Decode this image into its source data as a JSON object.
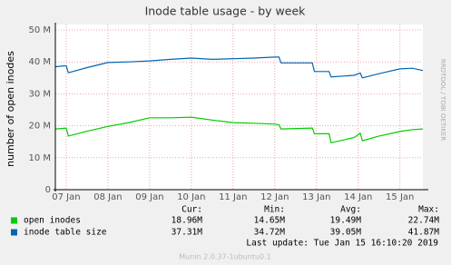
{
  "chart_data": {
    "type": "line",
    "title": "Inode table usage - by week",
    "y_label": "number of open inodes",
    "x": [
      6.75,
      7.0,
      7.05,
      7.5,
      8.0,
      8.5,
      9.0,
      9.5,
      10.0,
      10.5,
      11.0,
      11.5,
      12.0,
      12.1,
      12.15,
      12.9,
      12.95,
      13.3,
      13.35,
      13.9,
      14.05,
      14.1,
      14.5,
      15.0,
      15.3,
      15.55
    ],
    "xlim": [
      6.74,
      15.55
    ],
    "xticks": [
      {
        "value": 7,
        "label": "07 Jan"
      },
      {
        "value": 8,
        "label": "08 Jan"
      },
      {
        "value": 9,
        "label": "09 Jan"
      },
      {
        "value": 10,
        "label": "10 Jan"
      },
      {
        "value": 11,
        "label": "11 Jan"
      },
      {
        "value": 12,
        "label": "12 Jan"
      },
      {
        "value": 13,
        "label": "13 Jan"
      },
      {
        "value": 14,
        "label": "14 Jan"
      },
      {
        "value": 15,
        "label": "15 Jan"
      }
    ],
    "ylim": [
      0,
      50
    ],
    "yticks": [
      0,
      {
        "value": 10,
        "label": "10 M"
      },
      {
        "value": 20,
        "label": "20 M"
      },
      {
        "value": 30,
        "label": "30 M"
      },
      {
        "value": 40,
        "label": "40 M"
      },
      {
        "value": 50,
        "label": "50 M"
      }
    ],
    "grid": true,
    "series": [
      {
        "name": "open inodes",
        "color": "#00cc00",
        "values": [
          19.0,
          19.3,
          16.8,
          18.3,
          19.8,
          21.0,
          22.5,
          22.5,
          22.7,
          21.8,
          21.0,
          20.8,
          20.5,
          20.3,
          19.0,
          19.3,
          17.5,
          17.5,
          14.7,
          16.3,
          17.7,
          15.3,
          16.8,
          18.2,
          18.8,
          19.0
        ],
        "stats": [
          "18.96M",
          "14.65M",
          "19.49M",
          "22.74M"
        ]
      },
      {
        "name": "inode table size",
        "color": "#0066b3",
        "values": [
          38.5,
          38.8,
          36.6,
          38.2,
          39.8,
          40.0,
          40.3,
          40.8,
          41.2,
          40.8,
          41.0,
          41.2,
          41.5,
          41.5,
          39.7,
          39.7,
          37.0,
          37.0,
          35.3,
          35.8,
          36.5,
          35.0,
          36.3,
          37.8,
          38.0,
          37.3
        ],
        "stats": [
          "37.31M",
          "34.72M",
          "39.05M",
          "41.87M"
        ]
      }
    ],
    "stats_headers": [
      "Cur:",
      "Min:",
      "Avg:",
      "Max:"
    ],
    "last_update": "Last update: Tue Jan 15 16:10:20 2019",
    "side_text": "RRDTOOL / TOBI OETIKER",
    "footer": "Munin 2.0.37-1ubuntu0.1"
  }
}
